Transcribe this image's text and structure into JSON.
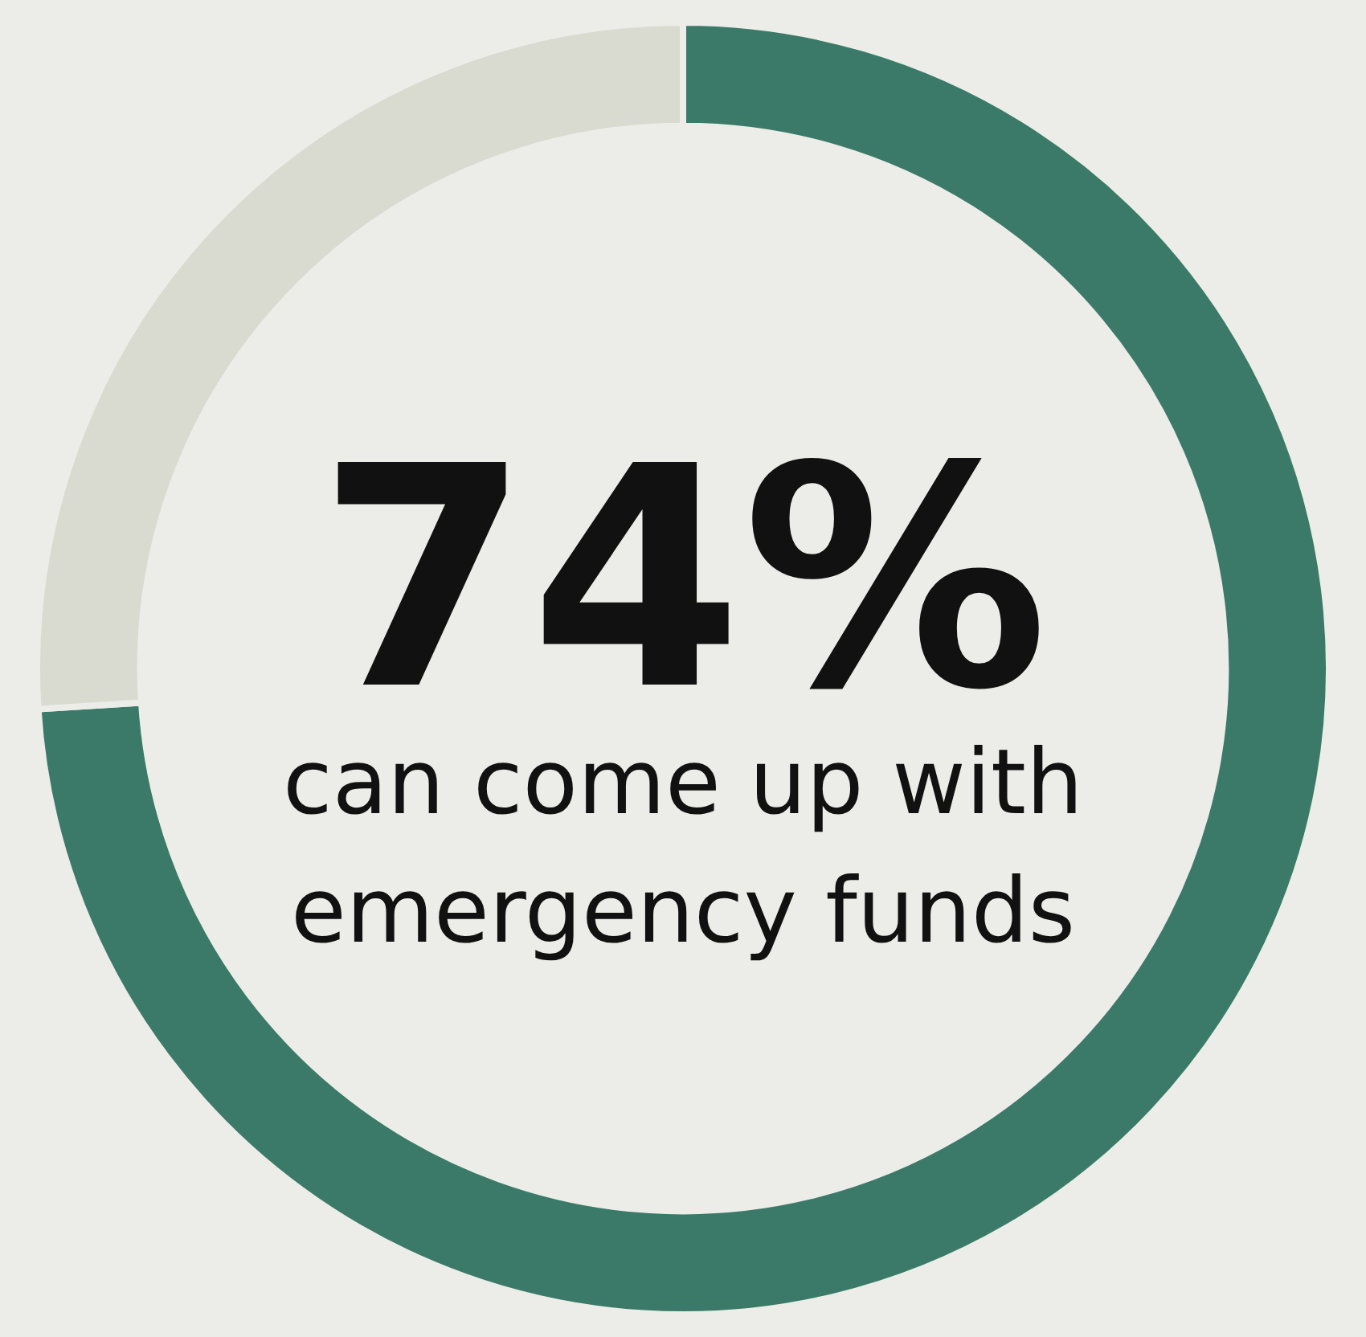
{
  "chart_data": {
    "type": "donut",
    "categories": [
      null,
      null
    ],
    "values": [
      74,
      26
    ],
    "colors": [
      "#3b7a69",
      "#d9dbd1"
    ],
    "value_labels": [
      "74%",
      null
    ],
    "annotations": [
      "can come up with emergency funds"
    ],
    "legend": false
  }
}
